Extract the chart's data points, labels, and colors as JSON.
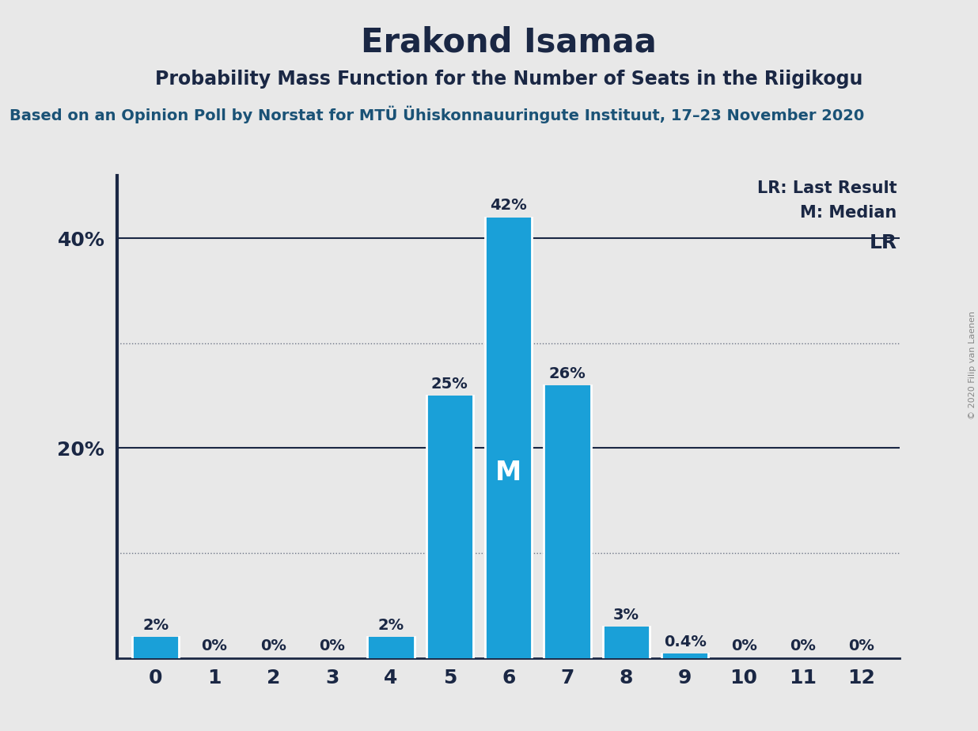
{
  "title": "Erakond Isamaa",
  "subtitle": "Probability Mass Function for the Number of Seats in the Riigikogu",
  "source_line": "Based on an Opinion Poll by Norstat for MTÜ Ühiskonnauuringute Instituut, 17–23 November 2020",
  "copyright": "© 2020 Filip van Laenen",
  "categories": [
    0,
    1,
    2,
    3,
    4,
    5,
    6,
    7,
    8,
    9,
    10,
    11,
    12
  ],
  "values": [
    2,
    0,
    0,
    0,
    2,
    25,
    42,
    26,
    3,
    0.4,
    0,
    0,
    0
  ],
  "bar_color": "#1aa0d8",
  "background_color": "#e8e8e8",
  "plot_background": "#e8e8e8",
  "left_border_color": "#1a2744",
  "median_seat": 6,
  "lr_seat": 12,
  "legend_lr": "LR: Last Result",
  "legend_m": "M: Median",
  "ylim": [
    0,
    46
  ],
  "bar_labels": [
    "2%",
    "0%",
    "0%",
    "0%",
    "2%",
    "25%",
    "42%",
    "26%",
    "3%",
    "0.4%",
    "0%",
    "0%",
    "0%"
  ],
  "title_fontsize": 30,
  "subtitle_fontsize": 17,
  "source_fontsize": 14,
  "bar_label_fontsize": 14,
  "median_label_fontsize": 24,
  "legend_fontsize": 15,
  "axis_fontsize": 18,
  "lr_fontsize": 18,
  "ytick_labels": [
    "",
    "20%",
    "40%"
  ],
  "ytick_positions": [
    0,
    20,
    40
  ],
  "solid_hlines": [
    20,
    40
  ],
  "dotted_hlines": [
    10,
    30
  ]
}
